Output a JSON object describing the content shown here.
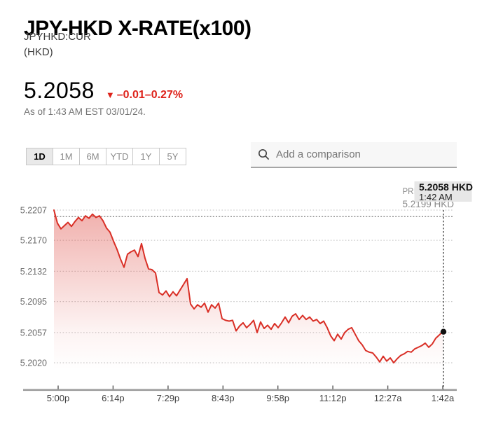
{
  "header": {
    "title": "JPY-HKD X-RATE(x100)",
    "symbol": "JPYHKD:CUR",
    "currency_label": "(HKD)"
  },
  "quote": {
    "price": "5.2058",
    "direction_icon": "▼",
    "change": "–0.01",
    "change_pct": "–0.27%",
    "as_of": "As of 1:43 AM EST 03/01/24."
  },
  "range_tabs": [
    {
      "label": "1D",
      "selected": true
    },
    {
      "label": "1M",
      "selected": false
    },
    {
      "label": "6M",
      "selected": false
    },
    {
      "label": "YTD",
      "selected": false
    },
    {
      "label": "1Y",
      "selected": false
    },
    {
      "label": "5Y",
      "selected": false
    }
  ],
  "comparison": {
    "icon": "search-icon",
    "placeholder": "Add a comparison"
  },
  "tooltip": {
    "price": "5.2058 HKD",
    "time": "1:42 AM"
  },
  "prev_close": {
    "label": "PREV CLOSE",
    "value_label": "5.2199 HKD",
    "value": 5.2199
  },
  "colors": {
    "line_red": "#d92f26",
    "accent_red": "#de231b",
    "grid": "#cccccc",
    "prev_close_line": "#8d8d8d",
    "crosshair": "#5f5f5f",
    "axis": "#9b9b9b",
    "tooltip_bg": "#e7e7e7"
  },
  "chart_data": {
    "type": "line",
    "title": "JPY-HKD X-RATE(x100) intraday (1D)",
    "ylabel": "HKD",
    "grid": true,
    "legend_position": "none",
    "ylim": [
      5.202,
      5.2207
    ],
    "y_ticks": [
      5.2207,
      5.217,
      5.2132,
      5.2095,
      5.2057,
      5.202
    ],
    "x_tick_labels": [
      "5:00p",
      "6:14p",
      "7:29p",
      "8:43p",
      "9:58p",
      "11:12p",
      "12:27a",
      "1:42a"
    ],
    "prev_close": 5.2199,
    "last_point": {
      "value": 5.2058,
      "time": "1:42 AM"
    },
    "series": [
      {
        "name": "JPYHKD:CUR",
        "values": [
          5.2207,
          5.2191,
          5.2184,
          5.2188,
          5.2192,
          5.2187,
          5.2193,
          5.2198,
          5.2194,
          5.22,
          5.2197,
          5.2202,
          5.2198,
          5.22,
          5.2194,
          5.2185,
          5.218,
          5.2169,
          5.2159,
          5.2147,
          5.2137,
          5.2153,
          5.2156,
          5.2158,
          5.215,
          5.2166,
          5.2148,
          5.2135,
          5.2134,
          5.213,
          5.2106,
          5.2103,
          5.2108,
          5.2101,
          5.2107,
          5.2102,
          5.2109,
          5.2116,
          5.2123,
          5.2092,
          5.2086,
          5.2091,
          5.2088,
          5.2093,
          5.2082,
          5.2091,
          5.2087,
          5.2093,
          5.2074,
          5.2072,
          5.2071,
          5.2072,
          5.2059,
          5.2065,
          5.2069,
          5.2063,
          5.2067,
          5.2072,
          5.2057,
          5.207,
          5.2062,
          5.2066,
          5.2061,
          5.2068,
          5.2063,
          5.2069,
          5.2076,
          5.2069,
          5.2077,
          5.208,
          5.2073,
          5.2078,
          5.2073,
          5.2076,
          5.2071,
          5.2073,
          5.2068,
          5.2071,
          5.2063,
          5.2053,
          5.2047,
          5.2055,
          5.2049,
          5.2057,
          5.2061,
          5.2063,
          5.2055,
          5.2047,
          5.2042,
          5.2035,
          5.2033,
          5.2032,
          5.2027,
          5.2021,
          5.2028,
          5.2022,
          5.2026,
          5.202,
          5.2025,
          5.2029,
          5.2031,
          5.2034,
          5.2033,
          5.2037,
          5.2039,
          5.2041,
          5.2044,
          5.2039,
          5.2043,
          5.205,
          5.2054,
          5.2058
        ]
      }
    ]
  }
}
